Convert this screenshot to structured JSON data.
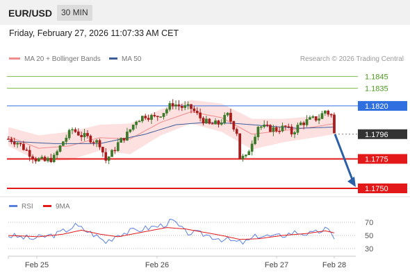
{
  "header": {
    "pair": "EUR/USD",
    "timeframe": "30 MIN"
  },
  "timestamp": "Friday, February 27, 2026 11:07:33 AM CET",
  "legend": {
    "ma20": "MA 20 + Bollinger Bands",
    "ma50": "MA 50",
    "credit": "Research © 2026 Trading Central"
  },
  "rsi_legend": {
    "rsi": "RSI",
    "ma": "9MA"
  },
  "colors": {
    "ma20": "#f08c8c",
    "ma50": "#3d5c99",
    "bands": "#fde0e0",
    "resistance": "#7dbb4a",
    "pivot": "#2f6fe0",
    "support": "#e31919",
    "price": "#333333",
    "arrow": "#2b5fa6",
    "rsi": "#5b7fe0",
    "rsi_ma": "#e31919",
    "bull": "#3c7a2a",
    "bear": "#a81c1c"
  },
  "chart_data": [
    {
      "type": "candlestick",
      "title": "EUR/USD",
      "timeframe": "30 MIN",
      "x_tick_labels": [
        "Feb 25",
        "Feb 26",
        "Feb 27",
        "Feb 28"
      ],
      "ylim": [
        1.1748,
        1.1848
      ],
      "levels": [
        {
          "label": "1.1845",
          "value": 1.1845,
          "kind": "resistance"
        },
        {
          "label": "1.1835",
          "value": 1.1835,
          "kind": "resistance"
        },
        {
          "label": "1.1820",
          "value": 1.182,
          "kind": "pivot"
        },
        {
          "label": "1.1796",
          "value": 1.1796,
          "kind": "last_price"
        },
        {
          "label": "1.1775",
          "value": 1.1775,
          "kind": "support"
        },
        {
          "label": "1.1750",
          "value": 1.175,
          "kind": "support"
        }
      ],
      "close_points": [
        [
          0,
          1.1792
        ],
        [
          3,
          1.1789
        ],
        [
          6,
          1.1782
        ],
        [
          9,
          1.1775
        ],
        [
          12,
          1.1773
        ],
        [
          15,
          1.1776
        ],
        [
          18,
          1.179
        ],
        [
          21,
          1.18
        ],
        [
          24,
          1.1795
        ],
        [
          27,
          1.1792
        ],
        [
          30,
          1.1788
        ],
        [
          32,
          1.1774
        ],
        [
          34,
          1.178
        ],
        [
          36,
          1.1788
        ],
        [
          39,
          1.1796
        ],
        [
          42,
          1.1808
        ],
        [
          45,
          1.1812
        ],
        [
          48,
          1.181
        ],
        [
          51,
          1.1815
        ],
        [
          54,
          1.1822
        ],
        [
          55,
          1.1821
        ],
        [
          57,
          1.1819
        ],
        [
          60,
          1.1818
        ],
        [
          63,
          1.181
        ],
        [
          66,
          1.1804
        ],
        [
          69,
          1.1805
        ],
        [
          72,
          1.1812
        ],
        [
          75,
          1.1798
        ],
        [
          76,
          1.1776
        ],
        [
          78,
          1.1776
        ],
        [
          80,
          1.179
        ],
        [
          82,
          1.1803
        ],
        [
          85,
          1.1801
        ],
        [
          88,
          1.18
        ],
        [
          91,
          1.1802
        ],
        [
          93,
          1.1797
        ],
        [
          96,
          1.1805
        ],
        [
          99,
          1.1808
        ],
        [
          102,
          1.181
        ],
        [
          104,
          1.1816
        ],
        [
          106,
          1.1812
        ],
        [
          107,
          1.1796
        ]
      ],
      "ma20_points": [
        [
          0,
          1.1794
        ],
        [
          10,
          1.1784
        ],
        [
          20,
          1.1786
        ],
        [
          30,
          1.1793
        ],
        [
          40,
          1.1792
        ],
        [
          50,
          1.1806
        ],
        [
          60,
          1.1815
        ],
        [
          70,
          1.181
        ],
        [
          80,
          1.1796
        ],
        [
          90,
          1.1799
        ],
        [
          100,
          1.1802
        ],
        [
          107,
          1.1805
        ]
      ],
      "ma50_points": [
        [
          0,
          1.179
        ],
        [
          15,
          1.1788
        ],
        [
          30,
          1.1788
        ],
        [
          45,
          1.1796
        ],
        [
          55,
          1.1804
        ],
        [
          65,
          1.1806
        ],
        [
          75,
          1.1805
        ],
        [
          85,
          1.1803
        ],
        [
          95,
          1.1801
        ],
        [
          107,
          1.1802
        ]
      ],
      "band_width_points": [
        [
          0,
          0.0008
        ],
        [
          10,
          0.0011
        ],
        [
          20,
          0.0012
        ],
        [
          30,
          0.0011
        ],
        [
          40,
          0.0013
        ],
        [
          50,
          0.0011
        ],
        [
          60,
          0.001
        ],
        [
          70,
          0.0012
        ],
        [
          80,
          0.0013
        ],
        [
          90,
          0.001
        ],
        [
          100,
          0.0009
        ],
        [
          107,
          0.0009
        ]
      ],
      "projection": {
        "from": 1.1796,
        "to": 1.175
      }
    },
    {
      "type": "line",
      "title": "RSI",
      "ylim": [
        25,
        75
      ],
      "y_ticks": [
        70,
        50,
        30
      ],
      "series": [
        {
          "name": "RSI",
          "points": [
            [
              0,
              50
            ],
            [
              8,
              45
            ],
            [
              16,
              52
            ],
            [
              22,
              65
            ],
            [
              28,
              52
            ],
            [
              32,
              40
            ],
            [
              36,
              52
            ],
            [
              44,
              60
            ],
            [
              50,
              65
            ],
            [
              54,
              72
            ],
            [
              58,
              55
            ],
            [
              64,
              52
            ],
            [
              70,
              45
            ],
            [
              76,
              39
            ],
            [
              78,
              40
            ],
            [
              82,
              50
            ],
            [
              88,
              48
            ],
            [
              94,
              55
            ],
            [
              100,
              52
            ],
            [
              104,
              60
            ],
            [
              107,
              48
            ]
          ]
        },
        {
          "name": "9MA",
          "points": [
            [
              0,
              50
            ],
            [
              10,
              48
            ],
            [
              18,
              52
            ],
            [
              24,
              58
            ],
            [
              30,
              52
            ],
            [
              36,
              48
            ],
            [
              44,
              55
            ],
            [
              52,
              62
            ],
            [
              58,
              60
            ],
            [
              64,
              55
            ],
            [
              70,
              50
            ],
            [
              76,
              44
            ],
            [
              82,
              45
            ],
            [
              90,
              50
            ],
            [
              98,
              53
            ],
            [
              104,
              57
            ],
            [
              107,
              54
            ]
          ]
        }
      ]
    }
  ]
}
